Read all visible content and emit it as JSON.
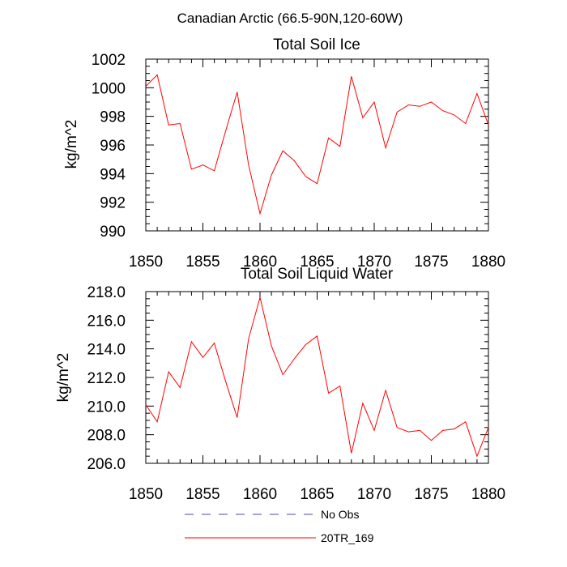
{
  "figure_title": "Canadian Arctic (66.5-90N,120-60W)",
  "chart_data": [
    {
      "type": "line",
      "title": "Total Soil Ice",
      "xlabel": "",
      "ylabel": "kg/m^2",
      "xlim": [
        1850,
        1880
      ],
      "ylim": [
        990,
        1002
      ],
      "xticks": [
        1850,
        1855,
        1860,
        1865,
        1870,
        1875,
        1880
      ],
      "yticks": [
        990,
        992,
        994,
        996,
        998,
        1000,
        1002
      ],
      "ytick_decimals": 0,
      "x_minor_step": 1,
      "y_minor_step": 0.5,
      "series": [
        {
          "name": "20TR_169",
          "color": "#ff0000",
          "x": [
            1850,
            1851,
            1852,
            1853,
            1854,
            1855,
            1856,
            1857,
            1858,
            1859,
            1860,
            1861,
            1862,
            1863,
            1864,
            1865,
            1866,
            1867,
            1868,
            1869,
            1870,
            1871,
            1872,
            1873,
            1874,
            1875,
            1876,
            1877,
            1878,
            1879,
            1880
          ],
          "y": [
            1000.1,
            1000.9,
            997.4,
            997.5,
            994.3,
            994.6,
            994.2,
            997.0,
            999.7,
            994.6,
            991.2,
            993.9,
            995.6,
            994.9,
            993.8,
            993.3,
            996.5,
            995.9,
            1000.8,
            997.9,
            999.0,
            995.8,
            998.3,
            998.8,
            998.7,
            999.0,
            998.4,
            998.1,
            997.5,
            999.6,
            997.4
          ]
        }
      ]
    },
    {
      "type": "line",
      "title": "Total Soil Liquid Water",
      "xlabel": "",
      "ylabel": "kg/m^2",
      "xlim": [
        1850,
        1880
      ],
      "ylim": [
        206,
        218
      ],
      "xticks": [
        1850,
        1855,
        1860,
        1865,
        1870,
        1875,
        1880
      ],
      "yticks": [
        206,
        208,
        210,
        212,
        214,
        216,
        218
      ],
      "ytick_decimals": 1,
      "x_minor_step": 1,
      "y_minor_step": 0.5,
      "series": [
        {
          "name": "20TR_169",
          "color": "#ff0000",
          "x": [
            1850,
            1851,
            1852,
            1853,
            1854,
            1855,
            1856,
            1857,
            1858,
            1859,
            1860,
            1861,
            1862,
            1863,
            1864,
            1865,
            1866,
            1867,
            1868,
            1869,
            1870,
            1871,
            1872,
            1873,
            1874,
            1875,
            1876,
            1877,
            1878,
            1879,
            1880
          ],
          "y": [
            210.1,
            208.9,
            212.4,
            211.3,
            214.5,
            213.4,
            214.4,
            211.7,
            209.2,
            214.7,
            217.6,
            214.2,
            212.2,
            213.3,
            214.3,
            214.9,
            210.9,
            211.4,
            206.7,
            210.2,
            208.3,
            211.1,
            208.5,
            208.2,
            208.3,
            207.6,
            208.3,
            208.4,
            208.9,
            206.5,
            208.5
          ]
        }
      ]
    }
  ],
  "legend": {
    "entries": [
      {
        "label": "No Obs",
        "color": "#4a4aa8",
        "style": "dashed"
      },
      {
        "label": "20TR_169",
        "color": "#ff0000",
        "style": "solid"
      }
    ]
  }
}
